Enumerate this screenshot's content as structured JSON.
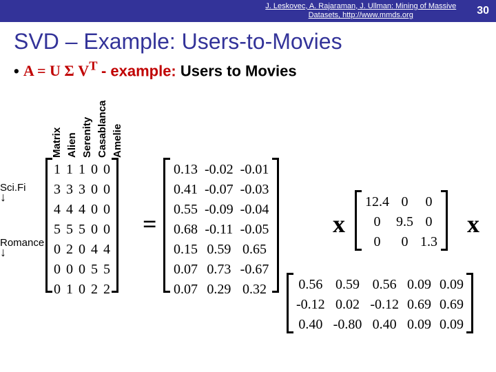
{
  "header": {
    "cite_line1": "J. Leskovec, A. Rajaraman, J. Ullman: Mining of Massive",
    "cite_line2": "Datasets, http://www.mmds.org",
    "slide_num": "30"
  },
  "title": "SVD – Example: Users-to-Movies",
  "subtitle_bullet": "•",
  "subtitle_formula": "A = U Σ V",
  "subtitle_sup": "T",
  "subtitle_rest": " - example:",
  "subtitle_black": " Users to Movies",
  "columns": [
    "Matrix",
    "Alien",
    "Serenity",
    "Casablanca",
    "Amelie"
  ],
  "row_group1": "Sci.Fi",
  "row_group2": "Romance",
  "arrow_down": "↓",
  "A": [
    [
      "1",
      "1",
      "1",
      "0",
      "0"
    ],
    [
      "3",
      "3",
      "3",
      "0",
      "0"
    ],
    [
      "4",
      "4",
      "4",
      "0",
      "0"
    ],
    [
      "5",
      "5",
      "5",
      "0",
      "0"
    ],
    [
      "0",
      "2",
      "0",
      "4",
      "4"
    ],
    [
      "0",
      "0",
      "0",
      "5",
      "5"
    ],
    [
      "0",
      "1",
      "0",
      "2",
      "2"
    ]
  ],
  "U": [
    [
      "0.13",
      "-0.02",
      "-0.01"
    ],
    [
      "0.41",
      "-0.07",
      "-0.03"
    ],
    [
      "0.55",
      "-0.09",
      "-0.04"
    ],
    [
      "0.68",
      "-0.11",
      "-0.05"
    ],
    [
      "0.15",
      "0.59",
      "0.65"
    ],
    [
      "0.07",
      "0.73",
      "-0.67"
    ],
    [
      "0.07",
      "0.29",
      "0.32"
    ]
  ],
  "S": [
    [
      "12.4",
      "0",
      "0"
    ],
    [
      "0",
      "9.5",
      "0"
    ],
    [
      "0",
      "0",
      "1.3"
    ]
  ],
  "V": [
    [
      "0.56",
      "0.59",
      "0.56",
      "0.09",
      "0.09"
    ],
    [
      "-0.12",
      "0.02",
      "-0.12",
      "0.69",
      "0.69"
    ],
    [
      "0.40",
      "-0.80",
      "0.40",
      "0.09",
      "0.09"
    ]
  ],
  "eq": "=",
  "x": "x",
  "colors": {
    "header_bg": "#333399",
    "title_color": "#333399",
    "accent": "#c00000"
  }
}
